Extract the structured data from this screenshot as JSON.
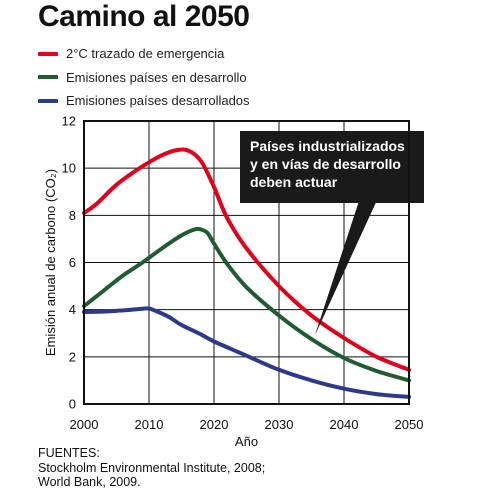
{
  "header": {
    "title": "Camino al 2050"
  },
  "chart_data": {
    "type": "line",
    "title": "Camino al 2050",
    "xlabel": "Año",
    "ylabel": "Emisión anual de carbono (CO₂)",
    "xlim": [
      2000,
      2050
    ],
    "ylim": [
      0,
      12
    ],
    "x_ticks": [
      2000,
      2010,
      2020,
      2030,
      2040,
      2050
    ],
    "y_ticks": [
      0,
      2,
      4,
      6,
      8,
      10,
      12
    ],
    "grid": true,
    "legend_position": "top-left, above plot",
    "series": [
      {
        "name": "2°C trazado de emergencia",
        "color": "#e2001a",
        "x": [
          2000,
          2002,
          2005,
          2008,
          2010,
          2012,
          2014,
          2016,
          2018,
          2020,
          2022,
          2025,
          2030,
          2035,
          2040,
          2045,
          2050
        ],
        "y": [
          8.1,
          8.5,
          9.3,
          9.9,
          10.25,
          10.55,
          10.75,
          10.75,
          10.3,
          9.2,
          7.9,
          6.6,
          5.0,
          3.75,
          2.8,
          2.0,
          1.45
        ]
      },
      {
        "name": "Emisiones países en desarrollo",
        "color": "#1f5c32",
        "x": [
          2000,
          2003,
          2006,
          2009,
          2012,
          2015,
          2017,
          2018,
          2019,
          2020,
          2022,
          2025,
          2030,
          2035,
          2040,
          2045,
          2050
        ],
        "y": [
          4.15,
          4.8,
          5.45,
          6.0,
          6.6,
          7.15,
          7.4,
          7.4,
          7.25,
          6.8,
          5.95,
          4.95,
          3.75,
          2.75,
          1.95,
          1.4,
          1.0
        ]
      },
      {
        "name": "Emisiones países desarrollados",
        "color": "#2d3a8c",
        "x": [
          2000,
          2003,
          2006,
          2009,
          2010,
          2011,
          2013,
          2015,
          2018,
          2020,
          2025,
          2030,
          2035,
          2040,
          2045,
          2050
        ],
        "y": [
          3.9,
          3.92,
          3.97,
          4.04,
          4.05,
          3.95,
          3.7,
          3.35,
          2.95,
          2.65,
          2.05,
          1.45,
          1.0,
          0.65,
          0.42,
          0.3
        ]
      }
    ],
    "annotation": {
      "lines": [
        "Países industrializados",
        "y en vías de desarrollo",
        "deben actuar"
      ],
      "pointer_target": {
        "x": 2035.5,
        "y": 2.9
      }
    }
  },
  "sources": {
    "label": "FUENTES:",
    "lines": [
      "Stockholm Environmental Institute,  2008;",
      "World Bank, 2009."
    ]
  },
  "colors": {
    "plot_border": "#111111",
    "grid": "#111111",
    "callout_bg": "#1a1a1a",
    "callout_text": "#ffffff"
  }
}
